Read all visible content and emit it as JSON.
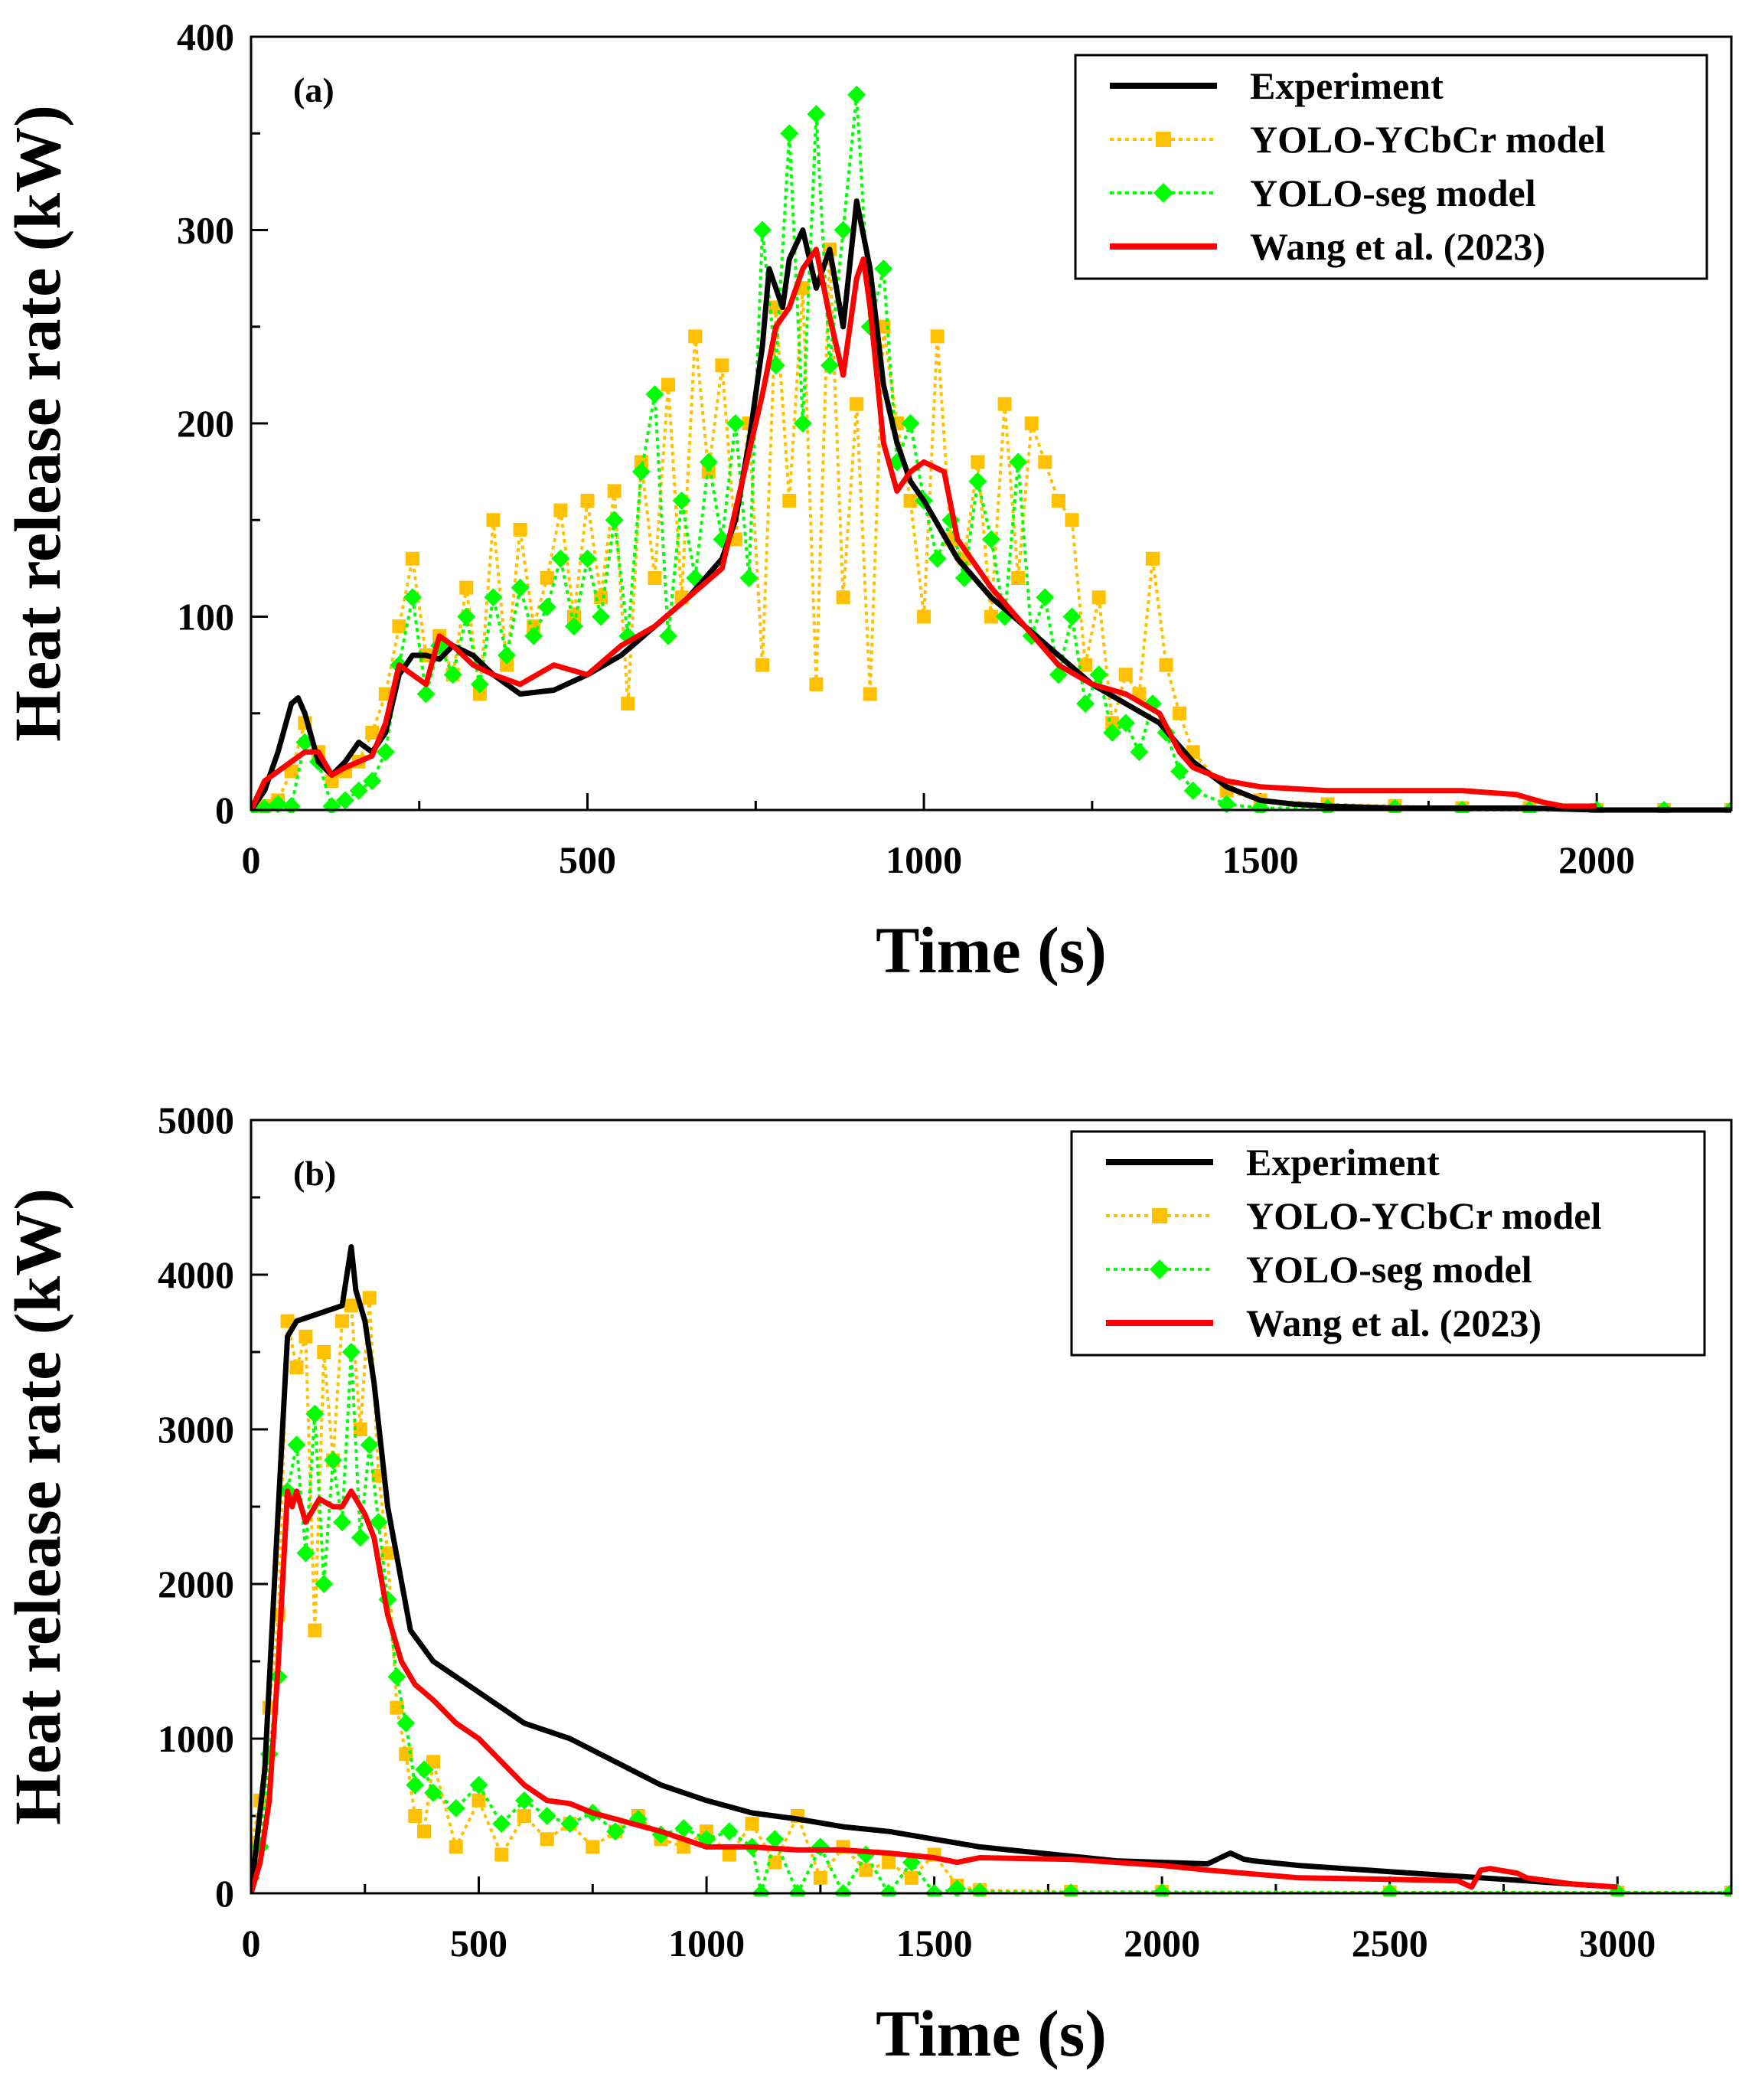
{
  "colors": {
    "experiment": "#000000",
    "yolo_ycbcr": "#FFC000",
    "yolo_seg": "#00FF00",
    "wang": "#FF0000"
  },
  "chart_data": [
    {
      "type": "line",
      "panel_label": "(a)",
      "xlabel": "Time (s)",
      "ylabel": "Heat release rate (kW)",
      "xlim": [
        0,
        2200
      ],
      "ylim": [
        0,
        400
      ],
      "xticks": [
        0,
        500,
        1000,
        1500,
        2000
      ],
      "yticks": [
        0,
        100,
        200,
        300,
        400
      ],
      "legend_position": "top-right",
      "series": [
        {
          "name": "Experiment",
          "key": "experiment",
          "style": "solid",
          "x": [
            0,
            20,
            40,
            60,
            70,
            80,
            100,
            120,
            140,
            160,
            180,
            200,
            220,
            240,
            260,
            280,
            300,
            330,
            360,
            400,
            450,
            500,
            550,
            600,
            650,
            700,
            720,
            740,
            760,
            770,
            780,
            790,
            800,
            820,
            840,
            860,
            880,
            900,
            920,
            940,
            960,
            980,
            1000,
            1050,
            1100,
            1150,
            1200,
            1250,
            1300,
            1350,
            1400,
            1450,
            1500,
            1550,
            1600,
            1700,
            1800,
            1900,
            2000,
            2100,
            2200
          ],
          "y": [
            0,
            10,
            30,
            55,
            58,
            50,
            25,
            18,
            25,
            35,
            30,
            40,
            70,
            80,
            80,
            78,
            85,
            80,
            70,
            60,
            62,
            70,
            80,
            95,
            110,
            130,
            150,
            190,
            240,
            280,
            270,
            260,
            285,
            300,
            270,
            290,
            250,
            315,
            280,
            220,
            190,
            170,
            160,
            130,
            110,
            95,
            80,
            65,
            55,
            45,
            25,
            12,
            5,
            3,
            2,
            1,
            1,
            1,
            0,
            0,
            0
          ]
        },
        {
          "name": "YOLO-YCbCr model",
          "key": "yolo_ycbcr",
          "style": "dotted",
          "marker": "square",
          "x": [
            0,
            20,
            40,
            60,
            80,
            100,
            120,
            140,
            160,
            180,
            200,
            220,
            240,
            260,
            280,
            300,
            320,
            340,
            360,
            380,
            400,
            420,
            440,
            460,
            480,
            500,
            520,
            540,
            560,
            580,
            600,
            620,
            640,
            660,
            680,
            700,
            720,
            740,
            760,
            780,
            800,
            820,
            840,
            860,
            880,
            900,
            920,
            940,
            960,
            980,
            1000,
            1020,
            1040,
            1060,
            1080,
            1100,
            1120,
            1140,
            1160,
            1180,
            1200,
            1220,
            1240,
            1260,
            1280,
            1300,
            1320,
            1340,
            1360,
            1380,
            1400,
            1450,
            1500,
            1600,
            1700,
            1800,
            1900,
            2000,
            2100,
            2200
          ],
          "y": [
            0,
            2,
            5,
            20,
            45,
            30,
            15,
            20,
            25,
            40,
            60,
            95,
            130,
            80,
            90,
            70,
            115,
            60,
            150,
            75,
            145,
            95,
            120,
            155,
            100,
            160,
            110,
            165,
            55,
            180,
            120,
            220,
            110,
            245,
            175,
            230,
            140,
            200,
            75,
            260,
            160,
            270,
            65,
            290,
            110,
            210,
            60,
            250,
            200,
            160,
            100,
            245,
            140,
            130,
            180,
            100,
            210,
            120,
            200,
            180,
            160,
            150,
            75,
            110,
            45,
            70,
            60,
            130,
            75,
            50,
            30,
            10,
            5,
            3,
            2,
            1,
            1,
            0,
            0,
            0
          ]
        },
        {
          "name": "YOLO-seg model",
          "key": "yolo_seg",
          "style": "dotted",
          "marker": "diamond",
          "x": [
            0,
            20,
            40,
            60,
            80,
            100,
            120,
            140,
            160,
            180,
            200,
            220,
            240,
            260,
            280,
            300,
            320,
            340,
            360,
            380,
            400,
            420,
            440,
            460,
            480,
            500,
            520,
            540,
            560,
            580,
            600,
            620,
            640,
            660,
            680,
            700,
            720,
            740,
            760,
            780,
            800,
            820,
            840,
            860,
            880,
            900,
            920,
            940,
            960,
            980,
            1000,
            1020,
            1040,
            1060,
            1080,
            1100,
            1120,
            1140,
            1160,
            1180,
            1200,
            1220,
            1240,
            1260,
            1280,
            1300,
            1320,
            1340,
            1360,
            1380,
            1400,
            1450,
            1500,
            1600,
            1700,
            1800,
            1900,
            2000,
            2100,
            2200
          ],
          "y": [
            0,
            1,
            3,
            2,
            35,
            25,
            2,
            5,
            10,
            15,
            30,
            75,
            110,
            60,
            85,
            70,
            100,
            65,
            110,
            80,
            115,
            90,
            105,
            130,
            95,
            130,
            100,
            150,
            90,
            175,
            215,
            90,
            160,
            120,
            180,
            140,
            200,
            120,
            300,
            230,
            350,
            200,
            360,
            230,
            300,
            370,
            250,
            280,
            180,
            200,
            160,
            130,
            150,
            120,
            170,
            140,
            100,
            180,
            90,
            110,
            70,
            100,
            55,
            70,
            40,
            45,
            30,
            55,
            40,
            20,
            10,
            3,
            1,
            1,
            1,
            0,
            0,
            0,
            0,
            0
          ]
        },
        {
          "name": "Wang et al. (2023)",
          "key": "wang",
          "style": "solid",
          "x": [
            0,
            20,
            40,
            60,
            80,
            100,
            120,
            140,
            160,
            180,
            200,
            220,
            240,
            260,
            280,
            300,
            330,
            360,
            400,
            450,
            500,
            550,
            600,
            650,
            700,
            720,
            740,
            760,
            780,
            800,
            820,
            840,
            860,
            880,
            900,
            910,
            920,
            940,
            960,
            980,
            1000,
            1030,
            1050,
            1100,
            1150,
            1200,
            1250,
            1300,
            1350,
            1380,
            1400,
            1450,
            1500,
            1600,
            1700,
            1800,
            1880,
            1920,
            1950,
            2000
          ],
          "y": [
            0,
            15,
            20,
            25,
            30,
            30,
            18,
            22,
            25,
            28,
            45,
            75,
            70,
            65,
            90,
            85,
            75,
            70,
            65,
            75,
            70,
            85,
            95,
            110,
            125,
            155,
            185,
            215,
            250,
            260,
            280,
            290,
            255,
            225,
            275,
            285,
            260,
            190,
            165,
            175,
            180,
            175,
            140,
            115,
            95,
            75,
            65,
            60,
            50,
            30,
            22,
            15,
            12,
            10,
            10,
            10,
            8,
            4,
            2,
            2
          ]
        }
      ]
    },
    {
      "type": "line",
      "panel_label": "(b)",
      "xlabel": "Time (s)",
      "ylabel": "Heat release rate (kW)",
      "xlim": [
        0,
        3250
      ],
      "ylim": [
        0,
        5000
      ],
      "xticks": [
        0,
        500,
        1000,
        1500,
        2000,
        2500,
        3000
      ],
      "yticks": [
        0,
        1000,
        2000,
        3000,
        4000,
        5000
      ],
      "legend_position": "top-right",
      "series": [
        {
          "name": "Experiment",
          "key": "experiment",
          "style": "solid",
          "x": [
            0,
            30,
            60,
            80,
            100,
            150,
            200,
            220,
            230,
            250,
            270,
            300,
            350,
            400,
            450,
            500,
            550,
            600,
            700,
            800,
            900,
            1000,
            1100,
            1200,
            1300,
            1400,
            1500,
            1600,
            1700,
            1800,
            1900,
            2000,
            2100,
            2150,
            2180,
            2200,
            2300,
            2400,
            2500,
            2600,
            2700,
            2800,
            2900,
            2950
          ],
          "y": [
            0,
            800,
            2500,
            3600,
            3700,
            3750,
            3800,
            4180,
            3900,
            3700,
            3300,
            2500,
            1700,
            1500,
            1400,
            1300,
            1200,
            1100,
            1000,
            850,
            700,
            600,
            520,
            480,
            430,
            400,
            350,
            300,
            270,
            240,
            210,
            200,
            190,
            260,
            220,
            210,
            180,
            160,
            140,
            120,
            100,
            80,
            60,
            50
          ]
        },
        {
          "name": "YOLO-YCbCr model",
          "key": "yolo_ycbcr",
          "style": "dotted",
          "marker": "square",
          "x": [
            0,
            20,
            40,
            60,
            80,
            100,
            120,
            140,
            160,
            180,
            200,
            220,
            240,
            260,
            280,
            300,
            320,
            340,
            360,
            380,
            400,
            450,
            500,
            550,
            600,
            650,
            700,
            750,
            800,
            850,
            900,
            950,
            1000,
            1050,
            1100,
            1150,
            1200,
            1250,
            1300,
            1350,
            1400,
            1450,
            1500,
            1550,
            1600,
            1800,
            2000,
            2500,
            3000,
            3250
          ],
          "y": [
            300,
            600,
            1200,
            1800,
            3700,
            3400,
            3600,
            1700,
            3500,
            2800,
            3700,
            3800,
            3000,
            3850,
            2700,
            2200,
            1200,
            900,
            500,
            400,
            850,
            300,
            600,
            250,
            500,
            350,
            450,
            300,
            400,
            500,
            350,
            300,
            400,
            250,
            450,
            200,
            500,
            100,
            300,
            150,
            200,
            100,
            250,
            50,
            20,
            10,
            10,
            5,
            5,
            5
          ]
        },
        {
          "name": "YOLO-seg model",
          "key": "yolo_seg",
          "style": "dotted",
          "marker": "diamond",
          "x": [
            0,
            20,
            40,
            60,
            80,
            100,
            120,
            140,
            160,
            180,
            200,
            220,
            240,
            260,
            280,
            300,
            320,
            340,
            360,
            380,
            400,
            450,
            500,
            550,
            600,
            650,
            700,
            750,
            800,
            850,
            900,
            950,
            1000,
            1050,
            1100,
            1120,
            1150,
            1200,
            1250,
            1300,
            1350,
            1400,
            1450,
            1500,
            1550,
            1600,
            1800,
            2000,
            2500,
            3000,
            3250
          ],
          "y": [
            100,
            300,
            900,
            1400,
            2600,
            2900,
            2200,
            3100,
            2000,
            2800,
            2400,
            3500,
            2300,
            2900,
            2400,
            1900,
            1400,
            1100,
            700,
            800,
            650,
            550,
            700,
            450,
            600,
            500,
            450,
            520,
            400,
            480,
            380,
            420,
            350,
            400,
            300,
            0,
            350,
            0,
            300,
            0,
            250,
            0,
            200,
            0,
            30,
            10,
            5,
            5,
            5,
            5,
            5
          ]
        },
        {
          "name": "Wang et al. (2023)",
          "key": "wang",
          "style": "solid",
          "x": [
            0,
            20,
            40,
            60,
            80,
            90,
            100,
            120,
            150,
            180,
            200,
            220,
            250,
            270,
            300,
            330,
            360,
            400,
            450,
            500,
            550,
            600,
            650,
            700,
            750,
            800,
            900,
            1000,
            1100,
            1200,
            1300,
            1400,
            1500,
            1550,
            1600,
            1800,
            2000,
            2100,
            2300,
            2500,
            2650,
            2680,
            2700,
            2720,
            2780,
            2800,
            2900,
            3000
          ],
          "y": [
            0,
            200,
            600,
            1500,
            2600,
            2500,
            2600,
            2400,
            2550,
            2500,
            2500,
            2600,
            2450,
            2300,
            1800,
            1500,
            1350,
            1250,
            1100,
            1000,
            850,
            700,
            600,
            580,
            520,
            480,
            400,
            300,
            300,
            280,
            280,
            260,
            230,
            200,
            230,
            220,
            180,
            150,
            100,
            90,
            80,
            40,
            150,
            160,
            130,
            100,
            60,
            40
          ]
        }
      ]
    }
  ]
}
